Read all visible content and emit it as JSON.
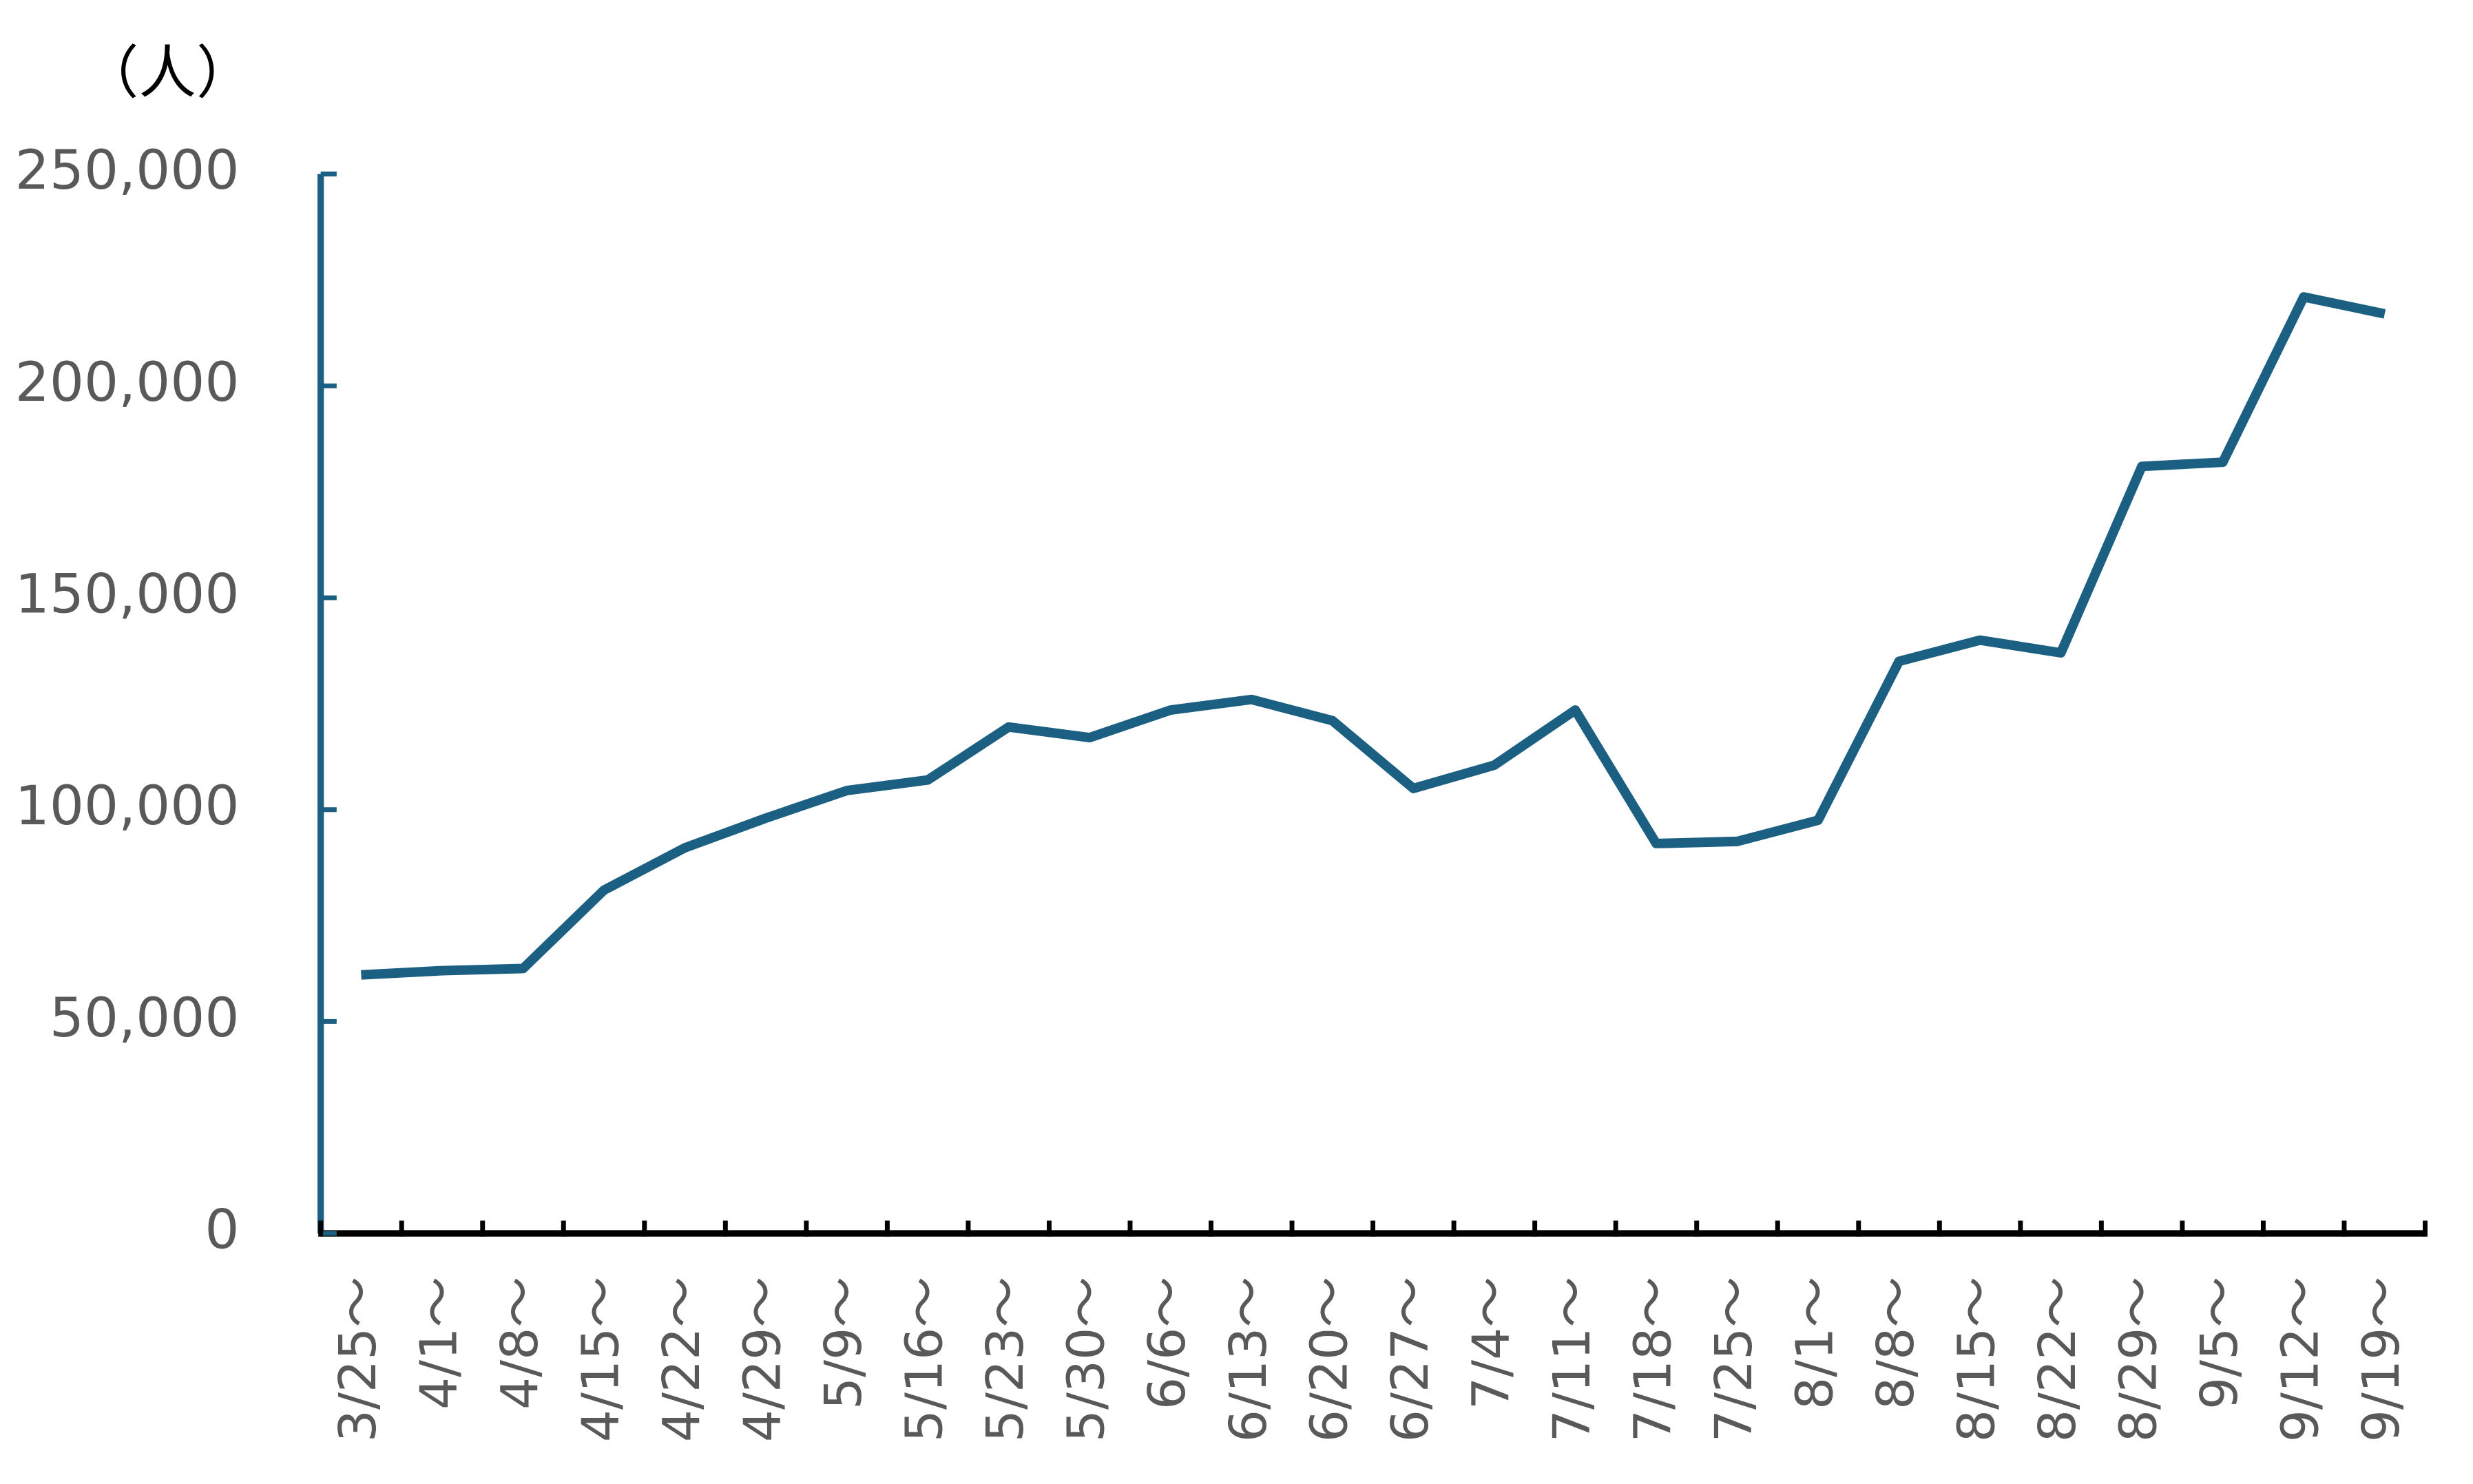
{
  "chart_data": {
    "type": "line",
    "y_label": "（人）",
    "categories": [
      "3/25～",
      "4/1～",
      "4/8～",
      "4/15～",
      "4/22～",
      "4/29～",
      "5/9～",
      "5/16～",
      "5/23～",
      "5/30～",
      "6/6～",
      "6/13～",
      "6/20～",
      "6/27～",
      "7/4～",
      "7/11～",
      "7/18～",
      "7/25～",
      "8/1～",
      "8/8～",
      "8/15～",
      "8/22～",
      "8/29～",
      "9/5～",
      "9/12～",
      "9/19～"
    ],
    "series": [
      {
        "color": "#1b5f82",
        "values": [
          61000,
          62000,
          62500,
          81000,
          91000,
          98000,
          104500,
          107000,
          119500,
          117000,
          123500,
          126000,
          121000,
          105000,
          110500,
          123500,
          92000,
          92500,
          97500,
          135000,
          140000,
          137000,
          181000,
          182000,
          221000,
          217000
        ]
      }
    ],
    "ylim": [
      0,
      250000
    ],
    "yticks": [
      0,
      {
        "value": 50000,
        "label": "50,000"
      },
      {
        "value": 100000,
        "label": "100,000"
      },
      {
        "value": 150000,
        "label": "150,000"
      },
      {
        "value": 200000,
        "label": "200,000"
      },
      {
        "value": 250000,
        "label": "250,000"
      }
    ],
    "grid": false
  }
}
